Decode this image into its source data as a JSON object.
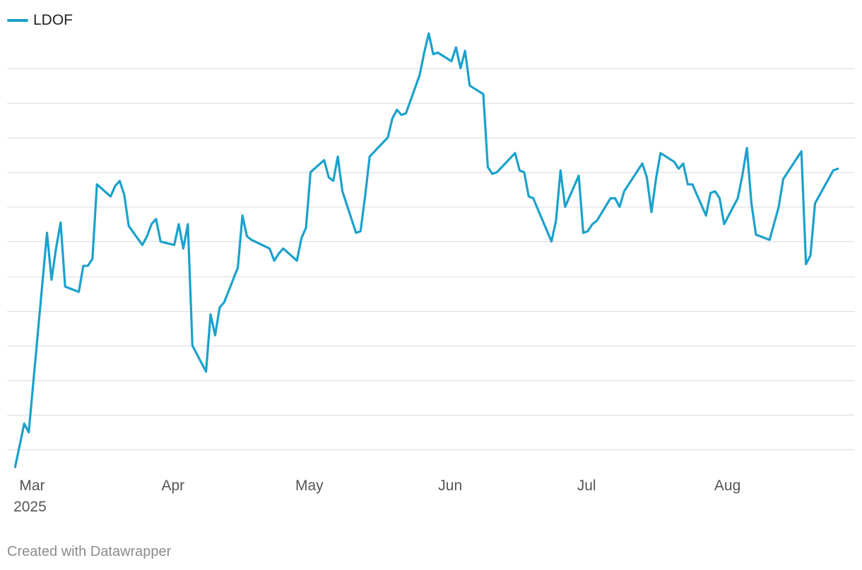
{
  "chart_data": {
    "type": "line",
    "legend_position": "top-left",
    "grid": true,
    "series": [
      {
        "name": "LDOF",
        "color": "#1ba1cc",
        "points": [
          [
            "2025-03-01",
            1.5
          ],
          [
            "2025-03-03",
            1.75
          ],
          [
            "2025-03-04",
            1.7
          ],
          [
            "2025-03-08",
            2.85
          ],
          [
            "2025-03-09",
            2.58
          ],
          [
            "2025-03-10",
            2.76
          ],
          [
            "2025-03-11",
            2.91
          ],
          [
            "2025-03-12",
            2.54
          ],
          [
            "2025-03-15",
            2.51
          ],
          [
            "2025-03-16",
            2.66
          ],
          [
            "2025-03-17",
            2.66
          ],
          [
            "2025-03-18",
            2.7
          ],
          [
            "2025-03-19",
            3.13
          ],
          [
            "2025-03-22",
            3.06
          ],
          [
            "2025-03-23",
            3.12
          ],
          [
            "2025-03-24",
            3.15
          ],
          [
            "2025-03-25",
            3.07
          ],
          [
            "2025-03-26",
            2.89
          ],
          [
            "2025-03-29",
            2.78
          ],
          [
            "2025-03-30",
            2.83
          ],
          [
            "2025-03-31",
            2.9
          ],
          [
            "2025-04-01",
            2.93
          ],
          [
            "2025-04-02",
            2.8
          ],
          [
            "2025-04-05",
            2.78
          ],
          [
            "2025-04-06",
            2.9
          ],
          [
            "2025-04-07",
            2.76
          ],
          [
            "2025-04-08",
            2.9
          ],
          [
            "2025-04-09",
            2.2
          ],
          [
            "2025-04-12",
            2.05
          ],
          [
            "2025-04-13",
            2.38
          ],
          [
            "2025-04-14",
            2.26
          ],
          [
            "2025-04-15",
            2.42
          ],
          [
            "2025-04-16",
            2.45
          ],
          [
            "2025-04-19",
            2.65
          ],
          [
            "2025-04-20",
            2.95
          ],
          [
            "2025-04-21",
            2.83
          ],
          [
            "2025-04-22",
            2.81
          ],
          [
            "2025-04-26",
            2.76
          ],
          [
            "2025-04-27",
            2.69
          ],
          [
            "2025-04-28",
            2.73
          ],
          [
            "2025-04-29",
            2.76
          ],
          [
            "2025-05-02",
            2.69
          ],
          [
            "2025-05-03",
            2.82
          ],
          [
            "2025-05-04",
            2.88
          ],
          [
            "2025-05-05",
            3.2
          ],
          [
            "2025-05-08",
            3.27
          ],
          [
            "2025-05-09",
            3.17
          ],
          [
            "2025-05-10",
            3.15
          ],
          [
            "2025-05-11",
            3.29
          ],
          [
            "2025-05-12",
            3.09
          ],
          [
            "2025-05-15",
            2.85
          ],
          [
            "2025-05-16",
            2.86
          ],
          [
            "2025-05-17",
            3.06
          ],
          [
            "2025-05-18",
            3.29
          ],
          [
            "2025-05-22",
            3.4
          ],
          [
            "2025-05-23",
            3.51
          ],
          [
            "2025-05-24",
            3.56
          ],
          [
            "2025-05-25",
            3.53
          ],
          [
            "2025-05-26",
            3.54
          ],
          [
            "2025-05-29",
            3.76
          ],
          [
            "2025-05-30",
            3.89
          ],
          [
            "2025-05-31",
            4.0
          ],
          [
            "2025-06-01",
            3.88
          ],
          [
            "2025-06-02",
            3.89
          ],
          [
            "2025-06-05",
            3.84
          ],
          [
            "2025-06-06",
            3.92
          ],
          [
            "2025-06-07",
            3.8
          ],
          [
            "2025-06-08",
            3.9
          ],
          [
            "2025-06-09",
            3.7
          ],
          [
            "2025-06-12",
            3.65
          ],
          [
            "2025-06-13",
            3.23
          ],
          [
            "2025-06-14",
            3.19
          ],
          [
            "2025-06-15",
            3.2
          ],
          [
            "2025-06-19",
            3.31
          ],
          [
            "2025-06-20",
            3.21
          ],
          [
            "2025-06-21",
            3.2
          ],
          [
            "2025-06-22",
            3.06
          ],
          [
            "2025-06-23",
            3.05
          ],
          [
            "2025-06-27",
            2.8
          ],
          [
            "2025-06-28",
            2.92
          ],
          [
            "2025-06-29",
            3.21
          ],
          [
            "2025-06-30",
            3.0
          ],
          [
            "2025-07-03",
            3.18
          ],
          [
            "2025-07-04",
            2.85
          ],
          [
            "2025-07-05",
            2.86
          ],
          [
            "2025-07-06",
            2.9
          ],
          [
            "2025-07-07",
            2.92
          ],
          [
            "2025-07-10",
            3.05
          ],
          [
            "2025-07-11",
            3.05
          ],
          [
            "2025-07-12",
            3.0
          ],
          [
            "2025-07-13",
            3.09
          ],
          [
            "2025-07-17",
            3.25
          ],
          [
            "2025-07-18",
            3.17
          ],
          [
            "2025-07-19",
            2.97
          ],
          [
            "2025-07-20",
            3.16
          ],
          [
            "2025-07-21",
            3.31
          ],
          [
            "2025-07-24",
            3.26
          ],
          [
            "2025-07-25",
            3.22
          ],
          [
            "2025-07-26",
            3.25
          ],
          [
            "2025-07-27",
            3.13
          ],
          [
            "2025-07-28",
            3.13
          ],
          [
            "2025-07-31",
            2.95
          ],
          [
            "2025-08-01",
            3.08
          ],
          [
            "2025-08-02",
            3.09
          ],
          [
            "2025-08-03",
            3.05
          ],
          [
            "2025-08-04",
            2.9
          ],
          [
            "2025-08-07",
            3.05
          ],
          [
            "2025-08-08",
            3.18
          ],
          [
            "2025-08-09",
            3.34
          ],
          [
            "2025-08-10",
            3.02
          ],
          [
            "2025-08-11",
            2.84
          ],
          [
            "2025-08-14",
            2.81
          ],
          [
            "2025-08-16",
            3.0
          ],
          [
            "2025-08-17",
            3.16
          ],
          [
            "2025-08-21",
            3.32
          ],
          [
            "2025-08-22",
            2.67
          ],
          [
            "2025-08-23",
            2.72
          ],
          [
            "2025-08-24",
            3.02
          ],
          [
            "2025-08-28",
            3.21
          ],
          [
            "2025-08-29",
            3.22
          ]
        ]
      }
    ],
    "x_range": [
      "2025-02-28",
      "2025-09-01"
    ],
    "ylim": [
      1.5,
      3.9
    ],
    "y_gridlines": [
      1.6,
      1.8,
      2.0,
      2.2,
      2.4,
      2.6,
      2.8,
      3.0,
      3.2,
      3.4,
      3.6,
      3.8
    ],
    "x_ticks": [
      {
        "date": "2025-03-01",
        "label": "Mar",
        "sublabel": "2025"
      },
      {
        "date": "2025-04-01",
        "label": "Apr",
        "sublabel": ""
      },
      {
        "date": "2025-05-01",
        "label": "May",
        "sublabel": ""
      },
      {
        "date": "2025-06-01",
        "label": "Jun",
        "sublabel": ""
      },
      {
        "date": "2025-07-01",
        "label": "Jul",
        "sublabel": ""
      },
      {
        "date": "2025-08-01",
        "label": "Aug",
        "sublabel": ""
      }
    ]
  },
  "footer": {
    "credit": "Created with Datawrapper"
  }
}
